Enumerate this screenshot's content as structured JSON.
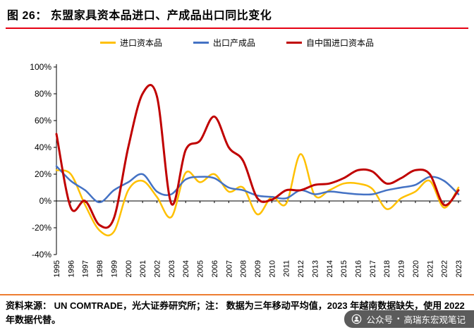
{
  "title": "图 26： 东盟家具资本品进口、产成品出口同比变化",
  "footer": {
    "text": "资料来源： UN COMTRADE，光大证券研究所；注： 数据为三年移动平均值，2023 年越南数据缺失，使用 2022 年数据代替。"
  },
  "watermark": {
    "label": "公众号",
    "separator": "•",
    "name": "高瑞东宏观笔记"
  },
  "colors": {
    "title_underline": "#E60012",
    "footer_rule": "#ED7D31",
    "axis": "#000000",
    "import_capital": "#FFC000",
    "export_finished": "#4472C4",
    "import_from_china": "#C00000"
  },
  "chart_data": {
    "type": "line",
    "title": "东盟家具资本品进口、产成品出口同比变化",
    "x": [
      1995,
      1996,
      1997,
      1998,
      1999,
      2000,
      2001,
      2002,
      2003,
      2004,
      2005,
      2006,
      2007,
      2008,
      2009,
      2010,
      2011,
      2012,
      2013,
      2014,
      2015,
      2016,
      2017,
      2018,
      2019,
      2020,
      2021,
      2022,
      2023
    ],
    "ylim": [
      -40,
      100
    ],
    "ytick_step": 20,
    "ytick_suffix": "%",
    "grid": false,
    "legend_position": "top",
    "series": [
      {
        "name": "进口资本品",
        "color": "#FFC000",
        "values": [
          23,
          20,
          -3,
          -22,
          -23,
          8,
          15,
          3,
          -12,
          21,
          14,
          20,
          7,
          10,
          -10,
          3,
          -2,
          35,
          4,
          8,
          13,
          13,
          9,
          -6,
          2,
          7,
          15,
          -5,
          10
        ]
      },
      {
        "name": "出口产成品",
        "color": "#4472C4",
        "values": [
          26,
          15,
          8,
          -1,
          8,
          14,
          20,
          7,
          5,
          16,
          18,
          17,
          10,
          8,
          4,
          3,
          2,
          8,
          5,
          7,
          6,
          5,
          5,
          8,
          10,
          12,
          18,
          15,
          5
        ]
      },
      {
        "name": "自中国进口资本品",
        "color": "#C00000",
        "values": [
          50,
          -5,
          0,
          -18,
          -13,
          40,
          80,
          78,
          -2,
          38,
          45,
          63,
          40,
          30,
          2,
          1,
          8,
          8,
          12,
          13,
          17,
          23,
          22,
          13,
          17,
          23,
          20,
          -3,
          8
        ]
      }
    ]
  }
}
